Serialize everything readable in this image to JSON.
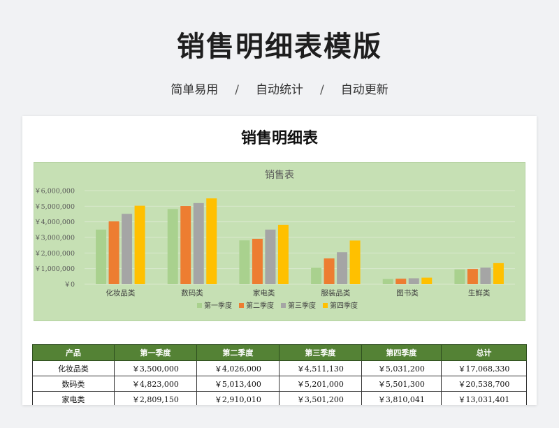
{
  "header": {
    "title": "销售明细表模版",
    "tags": [
      "简单易用",
      "自动统计",
      "自动更新"
    ],
    "separator": "/"
  },
  "card": {
    "title": "销售明细表"
  },
  "chart_data": {
    "type": "bar",
    "title": "销售表",
    "categories": [
      "化妆品类",
      "数码类",
      "家电类",
      "服装品类",
      "图书类",
      "生鲜类"
    ],
    "series": [
      {
        "name": "第一季度",
        "color": "#a9d18e",
        "values": [
          3500000,
          4823000,
          2809150,
          1050000,
          330000,
          950000
        ]
      },
      {
        "name": "第二季度",
        "color": "#ed7d31",
        "values": [
          4026000,
          5013400,
          2910010,
          1650000,
          350000,
          980000
        ]
      },
      {
        "name": "第三季度",
        "color": "#a5a5a5",
        "values": [
          4511130,
          5201000,
          3501200,
          2050000,
          380000,
          1060000
        ]
      },
      {
        "name": "第四季度",
        "color": "#ffc000",
        "values": [
          5031200,
          5501300,
          3810041,
          2800000,
          420000,
          1350000
        ]
      }
    ],
    "ylim": [
      0,
      6000000
    ],
    "yticks": [
      0,
      1000000,
      2000000,
      3000000,
      4000000,
      5000000,
      6000000
    ],
    "ytick_labels": [
      "￥0",
      "￥1,000,000",
      "￥2,000,000",
      "￥3,000,000",
      "￥4,000,000",
      "￥5,000,000",
      "￥6,000,000"
    ],
    "grid": true,
    "legend": "bottom"
  },
  "table": {
    "headers": [
      "产品",
      "第一季度",
      "第二季度",
      "第三季度",
      "第四季度",
      "总计"
    ],
    "rows": [
      [
        "化妆品类",
        "￥3,500,000",
        "￥4,026,000",
        "￥4,511,130",
        "￥5,031,200",
        "￥17,068,330"
      ],
      [
        "数码类",
        "￥4,823,000",
        "￥5,013,400",
        "￥5,201,000",
        "￥5,501,300",
        "￥20,538,700"
      ],
      [
        "家电类",
        "￥2,809,150",
        "￥2,910,010",
        "￥3,501,200",
        "￥3,810,041",
        "￥13,031,401"
      ]
    ]
  }
}
